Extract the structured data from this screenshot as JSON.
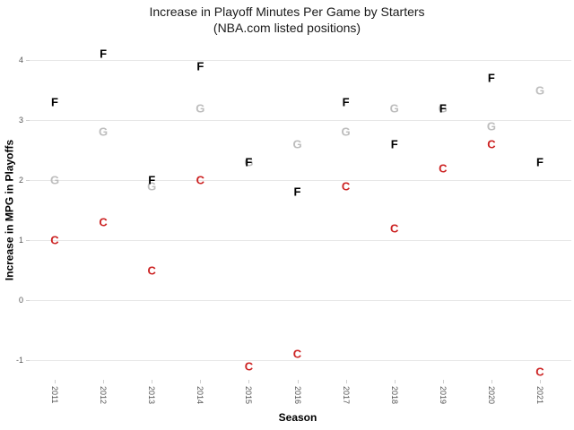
{
  "chart_data": {
    "type": "scatter",
    "marker_style": "text-letter-labels",
    "title": "Increase in Playoff Minutes Per Game by Starters",
    "subtitle": "(NBA.com listed positions)",
    "xlabel": "Season",
    "ylabel": "Increase in MPG in Playoffs",
    "categories": [
      "2011",
      "2012",
      "2013",
      "2014",
      "2015",
      "2016",
      "2017",
      "2018",
      "2019",
      "2020",
      "2021"
    ],
    "y_ticks": [
      4,
      3,
      2,
      1,
      0,
      -1
    ],
    "ylim": [
      -1.45,
      4.3
    ],
    "grid": "horizontal-major-only",
    "legend": "none",
    "x_tick_rotation_deg": 90,
    "series": [
      {
        "name": "Forwards",
        "label": "F",
        "color": "#000000",
        "values": [
          3.3,
          4.1,
          2.0,
          3.9,
          2.3,
          1.8,
          3.3,
          2.6,
          3.2,
          3.7,
          2.3
        ]
      },
      {
        "name": "Guards",
        "label": "G",
        "color": "#bdbdbd",
        "values": [
          2.0,
          2.8,
          1.9,
          3.2,
          2.3,
          2.6,
          2.8,
          3.2,
          3.2,
          2.9,
          3.5
        ]
      },
      {
        "name": "Centers",
        "label": "C",
        "color": "#cc2222",
        "values": [
          1.0,
          1.3,
          0.5,
          2.0,
          -1.1,
          -0.9,
          1.9,
          1.2,
          2.2,
          2.6,
          -1.2
        ]
      }
    ],
    "colors": {
      "background": "#ffffff",
      "gridline": "#e7e7e7",
      "tick_mark": "#cfcfcf",
      "tick_text": "#555555",
      "title_text": "#1a1a1a",
      "axis_title_text": "#000000"
    }
  }
}
